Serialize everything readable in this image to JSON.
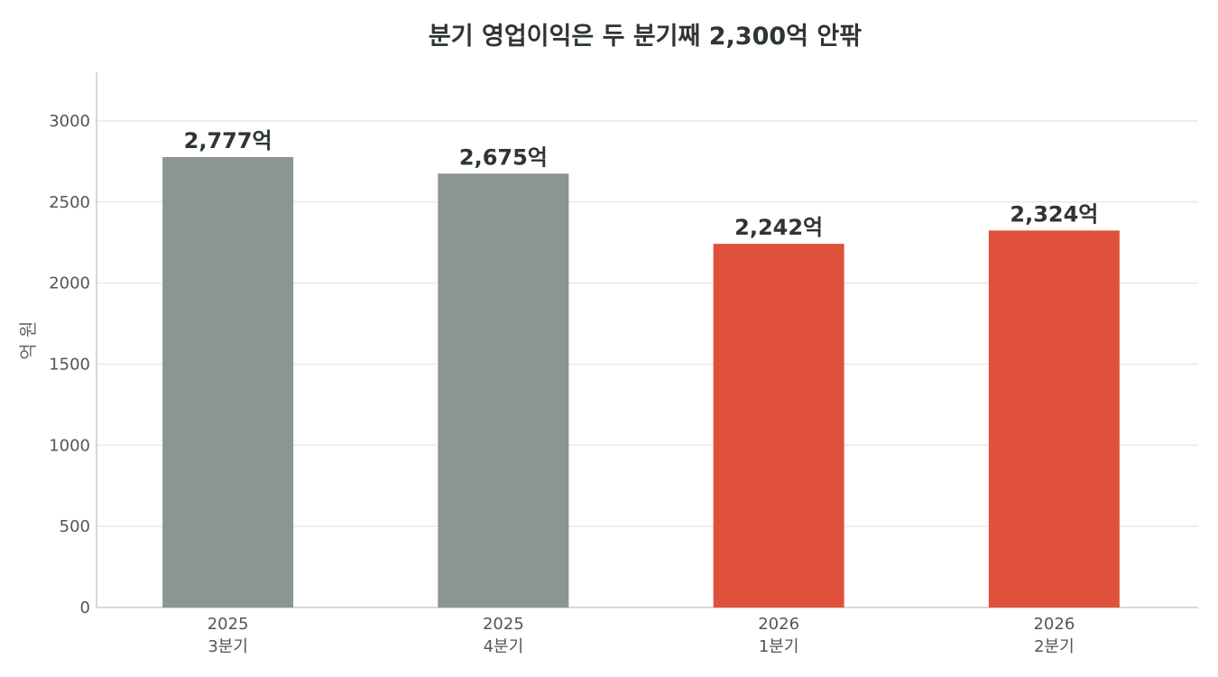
{
  "chart_data": {
    "type": "bar",
    "title": "분기 영업이익은 두 분기째 2,300억 안팎",
    "ylabel": "억 원",
    "ylim": [
      0,
      3300
    ],
    "yticks": [
      0,
      500,
      1000,
      1500,
      2000,
      2500,
      3000
    ],
    "grid": true,
    "categories": [
      {
        "year": "2025",
        "quarter": "3분기"
      },
      {
        "year": "2025",
        "quarter": "4분기"
      },
      {
        "year": "2026",
        "quarter": "1분기"
      },
      {
        "year": "2026",
        "quarter": "2분기"
      }
    ],
    "values": [
      2777,
      2675,
      2242,
      2324
    ],
    "data_labels": [
      "2,777억",
      "2,675억",
      "2,242억",
      "2,324억"
    ],
    "colors": [
      "#8b9591",
      "#8b9591",
      "#e0513b",
      "#e0513b"
    ],
    "grid_color": "#e9e9e9",
    "axis_color": "#cccccc"
  }
}
